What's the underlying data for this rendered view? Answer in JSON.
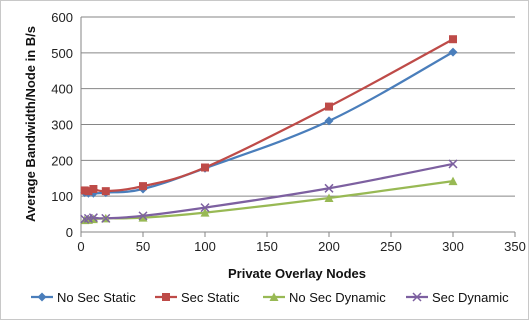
{
  "chart_data": {
    "type": "line",
    "title": "",
    "xlabel": "Private Overlay Nodes",
    "ylabel": "Average Bandwidth/Node in B/s",
    "xlim": [
      0,
      350
    ],
    "ylim": [
      0,
      600
    ],
    "xticks": [
      0,
      50,
      100,
      150,
      200,
      250,
      300,
      350
    ],
    "yticks": [
      0,
      100,
      200,
      300,
      400,
      500,
      600
    ],
    "grid": "horizontal",
    "legend_position": "bottom",
    "series": [
      {
        "name": "No Sec Static",
        "color": "#4a7ebb",
        "marker": "diamond",
        "x": [
          3,
          6,
          10,
          20,
          50,
          100,
          200,
          300
        ],
        "y": [
          110,
          108,
          108,
          110,
          120,
          178,
          310,
          502
        ]
      },
      {
        "name": "Sec Static",
        "color": "#be4b48",
        "marker": "square",
        "x": [
          3,
          6,
          10,
          20,
          50,
          100,
          200,
          300
        ],
        "y": [
          116,
          114,
          120,
          114,
          128,
          180,
          350,
          538
        ]
      },
      {
        "name": "No Sec Dynamic",
        "color": "#98b954",
        "marker": "triangle",
        "x": [
          3,
          6,
          10,
          20,
          50,
          100,
          200,
          300
        ],
        "y": [
          33,
          34,
          36,
          38,
          40,
          54,
          95,
          142
        ]
      },
      {
        "name": "Sec Dynamic",
        "color": "#7d60a0",
        "marker": "x",
        "x": [
          3,
          6,
          10,
          20,
          50,
          100,
          200,
          300
        ],
        "y": [
          36,
          38,
          40,
          38,
          45,
          68,
          122,
          190
        ]
      }
    ]
  }
}
